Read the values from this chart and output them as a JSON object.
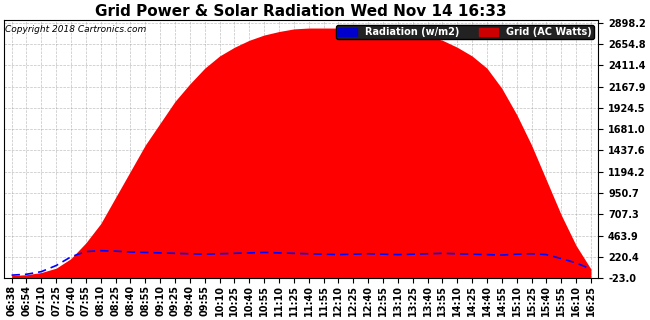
{
  "title": "Grid Power & Solar Radiation Wed Nov 14 16:33",
  "copyright": "Copyright 2018 Cartronics.com",
  "legend_radiation": "Radiation (w/m2)",
  "legend_grid": "Grid (AC Watts)",
  "radiation_fill_color": "#ff0000",
  "grid_line_color": "#0000ff",
  "ymin": -23.0,
  "ymax": 2898.2,
  "yticks": [
    2898.2,
    2654.8,
    2411.4,
    2167.9,
    1924.5,
    1681.0,
    1437.6,
    1194.2,
    950.7,
    707.3,
    463.9,
    220.4,
    -23.0
  ],
  "background_color": "#ffffff",
  "plot_background": "#ffffff",
  "grid_color": "#999999",
  "title_fontsize": 11,
  "tick_fontsize": 7,
  "time_labels": [
    "06:38",
    "06:54",
    "07:10",
    "07:25",
    "07:40",
    "07:55",
    "08:10",
    "08:25",
    "08:40",
    "08:55",
    "09:10",
    "09:25",
    "09:40",
    "09:55",
    "10:10",
    "10:25",
    "10:40",
    "10:55",
    "11:10",
    "11:25",
    "11:40",
    "11:55",
    "12:10",
    "12:25",
    "12:40",
    "12:55",
    "13:10",
    "13:25",
    "13:40",
    "13:55",
    "14:10",
    "14:25",
    "14:40",
    "14:55",
    "15:10",
    "15:25",
    "15:40",
    "15:55",
    "16:10",
    "16:25"
  ],
  "radiation_values": [
    5,
    15,
    40,
    90,
    200,
    380,
    600,
    900,
    1200,
    1500,
    1750,
    2000,
    2200,
    2380,
    2520,
    2620,
    2700,
    2760,
    2800,
    2830,
    2840,
    2840,
    2840,
    2840,
    2830,
    2820,
    2810,
    2790,
    2750,
    2700,
    2620,
    2520,
    2380,
    2150,
    1850,
    1500,
    1100,
    700,
    350,
    80
  ],
  "grid_values": [
    10,
    20,
    50,
    120,
    220,
    280,
    290,
    285,
    275,
    270,
    265,
    260,
    255,
    250,
    255,
    260,
    265,
    270,
    265,
    260,
    255,
    250,
    245,
    250,
    255,
    250,
    245,
    250,
    255,
    260,
    255,
    250,
    245,
    240,
    250,
    255,
    245,
    200,
    150,
    80
  ]
}
